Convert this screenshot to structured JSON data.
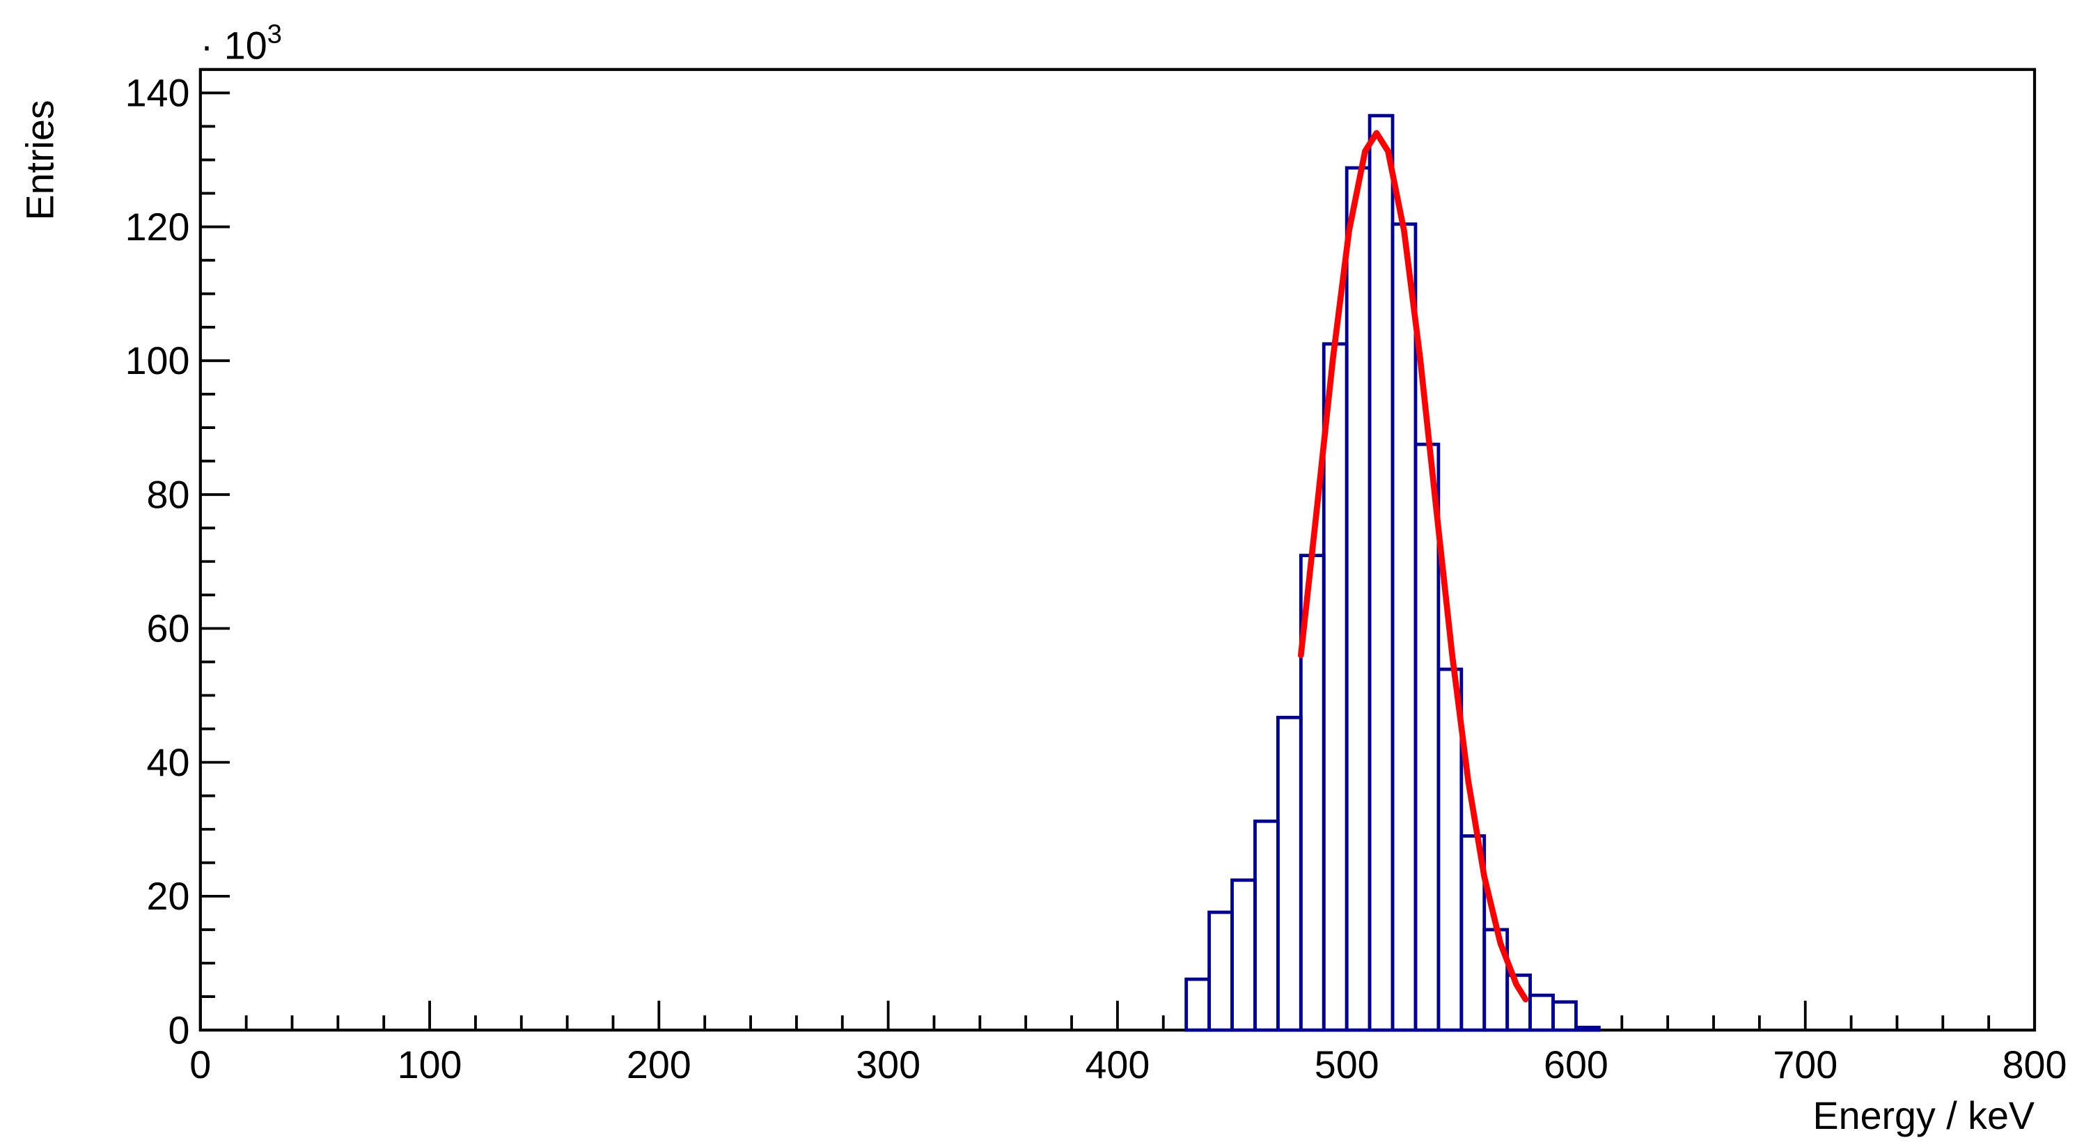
{
  "chart_data": {
    "type": "histogram",
    "x_label": "Energy / keV",
    "y_label": "Entries",
    "multiplier_base": "· 10",
    "multiplier_exponent": "3",
    "bins": [
      430,
      440,
      450,
      460,
      470,
      480,
      490,
      500,
      510,
      520,
      530,
      540,
      550,
      560,
      570,
      580,
      590,
      600,
      610
    ],
    "counts": [
      7.6,
      17.6,
      22.4,
      31.2,
      46.7,
      70.9,
      102.5,
      128.8,
      136.6,
      120.4,
      87.5,
      53.9,
      29.0,
      15.0,
      8.2,
      5.2,
      4.2,
      0.4
    ],
    "color": "#000099",
    "fit": {
      "color": "#ff0000",
      "x": [
        480,
        487,
        494,
        501,
        508,
        513,
        518,
        525,
        532,
        539,
        546,
        553,
        560,
        567,
        574,
        578
      ],
      "y": [
        56.0,
        78.0,
        100.4,
        119.4,
        131.3,
        134,
        131.3,
        119.4,
        100.4,
        78.0,
        56.0,
        37.2,
        22.9,
        13.0,
        6.8,
        4.6
      ]
    },
    "xlim": [
      0,
      800
    ],
    "ylim": [
      0,
      143.5
    ],
    "xticks": [
      0,
      100,
      200,
      300,
      400,
      500,
      600,
      700,
      800
    ],
    "yticks": [
      0,
      20,
      40,
      60,
      80,
      100,
      120,
      140
    ],
    "xminorticks": [
      20,
      40,
      60,
      80,
      120,
      140,
      160,
      180,
      220,
      240,
      260,
      280,
      320,
      340,
      360,
      380,
      420,
      440,
      460,
      480,
      520,
      540,
      560,
      580,
      620,
      640,
      660,
      680,
      720,
      740,
      760,
      780
    ],
    "yminorticks": [
      5,
      10,
      15,
      25,
      30,
      35,
      45,
      50,
      55,
      65,
      70,
      75,
      85,
      90,
      95,
      105,
      110,
      115,
      125,
      130,
      135
    ]
  }
}
